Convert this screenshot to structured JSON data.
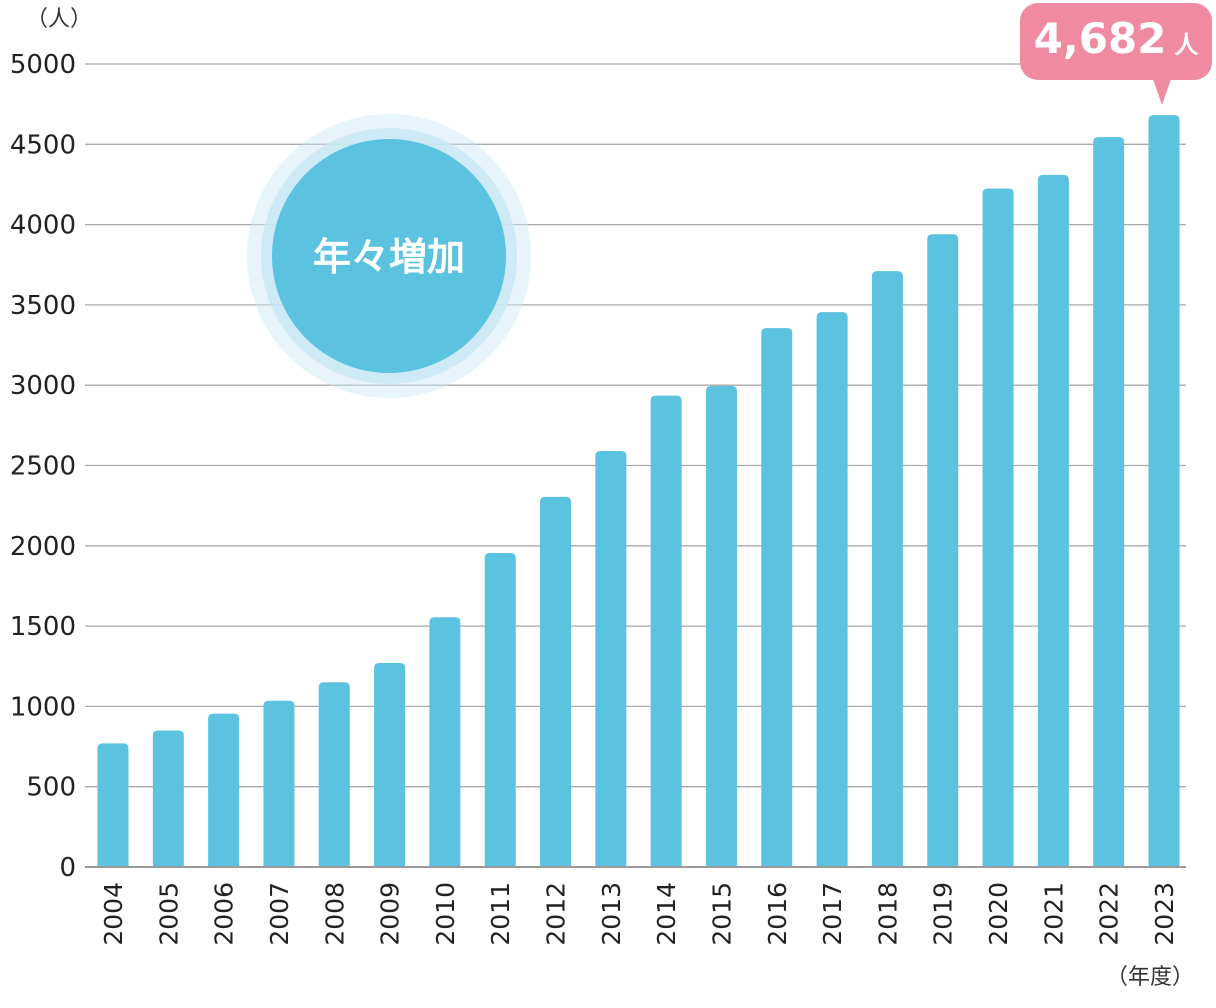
{
  "chart_data": {
    "type": "bar",
    "y_unit_label": "（人）",
    "x_unit_label": "（年度）",
    "categories": [
      "2004",
      "2005",
      "2006",
      "2007",
      "2008",
      "2009",
      "2010",
      "2011",
      "2012",
      "2013",
      "2014",
      "2015",
      "2016",
      "2017",
      "2018",
      "2019",
      "2020",
      "2021",
      "2022",
      "2023"
    ],
    "values": [
      770,
      850,
      955,
      1035,
      1150,
      1270,
      1555,
      1955,
      2305,
      2590,
      2935,
      2995,
      3355,
      3455,
      3710,
      3940,
      4225,
      4310,
      4545,
      4682
    ],
    "ylim": [
      0,
      5000
    ],
    "yticks": [
      0,
      500,
      1000,
      1500,
      2000,
      2500,
      3000,
      3500,
      4000,
      4500,
      5000
    ],
    "grid": true,
    "bar_color": "#5bc3e0",
    "badge": {
      "text": "年々増加",
      "color": "#5bc3e0",
      "halo_color": "#c9e8f4"
    },
    "callout": {
      "value": "4,682",
      "unit": "人",
      "color": "#ef8aa0"
    }
  }
}
